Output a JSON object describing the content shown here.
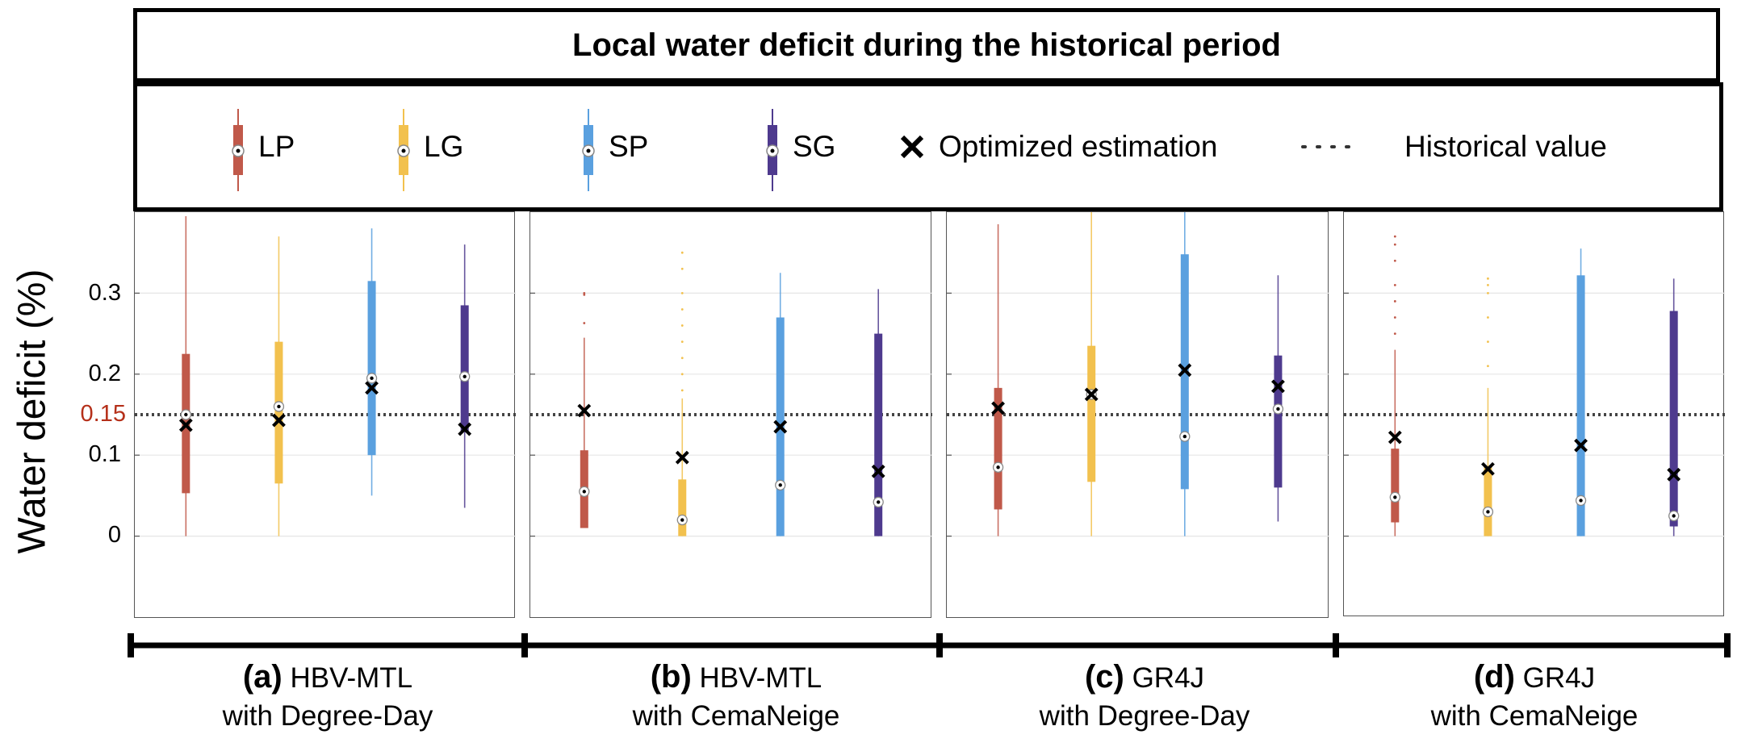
{
  "title": "Local water deficit during the historical period",
  "legend": {
    "items": [
      {
        "label": "LP",
        "color": "#c0594a"
      },
      {
        "label": "LG",
        "color": "#f2c14e"
      },
      {
        "label": "SP",
        "color": "#5aa0df"
      },
      {
        "label": "SG",
        "color": "#4e3a8e"
      }
    ],
    "optimized_label": "Optimized estimation",
    "historical_label": "Historical value"
  },
  "y_axis": {
    "label": "Water deficit (%)",
    "ticks": [
      "0",
      "0.1",
      "0.2",
      "0.3"
    ],
    "historical_tick": "0.15"
  },
  "panels": [
    {
      "letter": "(a)",
      "model": "HBV-MTL",
      "snow": "with Degree-Day"
    },
    {
      "letter": "(b)",
      "model": "HBV-MTL",
      "snow": "with CemaNeige"
    },
    {
      "letter": "(c)",
      "model": "GR4J",
      "snow": "with Degree-Day"
    },
    {
      "letter": "(d)",
      "model": "GR4J",
      "snow": "with CemaNeige"
    }
  ],
  "chart_data": {
    "type": "box",
    "title": "Local water deficit during the historical period",
    "ylabel": "Water deficit (%)",
    "ylim": [
      -0.1,
      0.4
    ],
    "yticks": [
      0,
      0.1,
      0.2,
      0.3
    ],
    "historical_value": 0.15,
    "categories": [
      "LP",
      "LG",
      "SP",
      "SG"
    ],
    "colors": [
      "#c0594a",
      "#f2c14e",
      "#5aa0df",
      "#4e3a8e"
    ],
    "legend_position": "top",
    "grid": "horizontal",
    "panels": [
      {
        "name": "(a) HBV-MTL with Degree-Day",
        "boxes": [
          {
            "category": "LP",
            "whisker_low": 0.0,
            "q1": 0.053,
            "median": 0.15,
            "q3": 0.225,
            "whisker_high": 0.395,
            "optimized": 0.137,
            "outliers": []
          },
          {
            "category": "LG",
            "whisker_low": 0.0,
            "q1": 0.065,
            "median": 0.16,
            "q3": 0.24,
            "whisker_high": 0.37,
            "optimized": 0.143,
            "outliers": []
          },
          {
            "category": "SP",
            "whisker_low": 0.05,
            "q1": 0.1,
            "median": 0.195,
            "q3": 0.315,
            "whisker_high": 0.38,
            "optimized": 0.183,
            "outliers": []
          },
          {
            "category": "SG",
            "whisker_low": 0.035,
            "q1": 0.13,
            "median": 0.197,
            "q3": 0.285,
            "whisker_high": 0.36,
            "optimized": 0.132,
            "outliers": []
          }
        ]
      },
      {
        "name": "(b) HBV-MTL with CemaNeige",
        "boxes": [
          {
            "category": "LP",
            "whisker_low": 0.01,
            "q1": 0.01,
            "median": 0.055,
            "q3": 0.106,
            "whisker_high": 0.245,
            "optimized": 0.155,
            "outliers": [
              0.263,
              0.298,
              0.3
            ]
          },
          {
            "category": "LG",
            "whisker_low": 0.0,
            "q1": 0.0,
            "median": 0.02,
            "q3": 0.07,
            "whisker_high": 0.17,
            "optimized": 0.097,
            "outliers": [
              0.18,
              0.2,
              0.22,
              0.24,
              0.26,
              0.28,
              0.3,
              0.33,
              0.35
            ]
          },
          {
            "category": "SP",
            "whisker_low": 0.0,
            "q1": 0.0,
            "median": 0.063,
            "q3": 0.27,
            "whisker_high": 0.325,
            "optimized": 0.135,
            "outliers": []
          },
          {
            "category": "SG",
            "whisker_low": 0.0,
            "q1": 0.0,
            "median": 0.042,
            "q3": 0.25,
            "whisker_high": 0.305,
            "optimized": 0.08,
            "outliers": []
          }
        ]
      },
      {
        "name": "(c) GR4J with Degree-Day",
        "boxes": [
          {
            "category": "LP",
            "whisker_low": 0.0,
            "q1": 0.033,
            "median": 0.085,
            "q3": 0.183,
            "whisker_high": 0.385,
            "optimized": 0.158,
            "outliers": []
          },
          {
            "category": "LG",
            "whisker_low": 0.0,
            "q1": 0.067,
            "median": 0.175,
            "q3": 0.235,
            "whisker_high": 0.4,
            "optimized": 0.175,
            "outliers": []
          },
          {
            "category": "SP",
            "whisker_low": 0.0,
            "q1": 0.058,
            "median": 0.123,
            "q3": 0.348,
            "whisker_high": 0.4,
            "optimized": 0.205,
            "outliers": []
          },
          {
            "category": "SG",
            "whisker_low": 0.018,
            "q1": 0.06,
            "median": 0.157,
            "q3": 0.223,
            "whisker_high": 0.322,
            "optimized": 0.185,
            "outliers": []
          }
        ]
      },
      {
        "name": "(d) GR4J with CemaNeige",
        "boxes": [
          {
            "category": "LP",
            "whisker_low": 0.0,
            "q1": 0.017,
            "median": 0.048,
            "q3": 0.108,
            "whisker_high": 0.23,
            "optimized": 0.122,
            "outliers": [
              0.25,
              0.27,
              0.29,
              0.31,
              0.34,
              0.36,
              0.37
            ]
          },
          {
            "category": "LG",
            "whisker_low": 0.0,
            "q1": 0.0,
            "median": 0.03,
            "q3": 0.085,
            "whisker_high": 0.183,
            "optimized": 0.083,
            "outliers": [
              0.21,
              0.24,
              0.27,
              0.3,
              0.31,
              0.318
            ]
          },
          {
            "category": "SP",
            "whisker_low": 0.0,
            "q1": 0.0,
            "median": 0.044,
            "q3": 0.322,
            "whisker_high": 0.355,
            "optimized": 0.112,
            "outliers": []
          },
          {
            "category": "SG",
            "whisker_low": 0.0,
            "q1": 0.012,
            "median": 0.025,
            "q3": 0.278,
            "whisker_high": 0.318,
            "optimized": 0.076,
            "outliers": []
          }
        ]
      }
    ]
  }
}
